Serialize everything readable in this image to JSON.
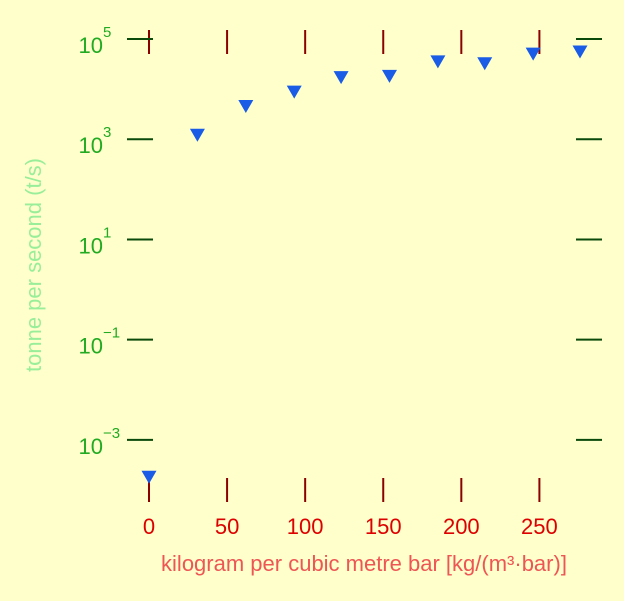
{
  "chart_data": {
    "type": "scatter",
    "title": "",
    "xlabel": "kilogram per cubic metre bar [kg/(m³·bar)]",
    "ylabel": "tonne per second (t/s)",
    "xlim": [
      0,
      276
    ],
    "ylim": [
      0.0001,
      100000
    ],
    "yscale": "log",
    "x_ticks": [
      0,
      50,
      100,
      150,
      200,
      250
    ],
    "y_ticks": [
      {
        "base": "10",
        "exp": "5",
        "value": 100000
      },
      {
        "base": "10",
        "exp": "3",
        "value": 1000
      },
      {
        "base": "10",
        "exp": "1",
        "value": 10
      },
      {
        "base": "10",
        "exp": "−1",
        "value": 0.1
      },
      {
        "base": "10",
        "exp": "−3",
        "value": 0.001
      }
    ],
    "grid": false,
    "colors": {
      "marker": "#1a5ce6",
      "x_tick": "#8b0000",
      "y_tick": "#0a4a0a",
      "x_tick_label": "#dd0000",
      "y_tick_label": "#22aa22",
      "xlabel": "#ee5555",
      "ylabel": "#99ee99"
    },
    "series": [
      {
        "marker": "triangle-down",
        "points": [
          {
            "x": 0,
            "y": 0.00018
          },
          {
            "x": 31,
            "y": 1200
          },
          {
            "x": 62,
            "y": 4500
          },
          {
            "x": 93,
            "y": 8700
          },
          {
            "x": 123,
            "y": 17000
          },
          {
            "x": 154,
            "y": 18000
          },
          {
            "x": 185,
            "y": 35000
          },
          {
            "x": 215,
            "y": 32000
          },
          {
            "x": 246,
            "y": 50000
          },
          {
            "x": 276,
            "y": 55000
          }
        ]
      }
    ]
  }
}
